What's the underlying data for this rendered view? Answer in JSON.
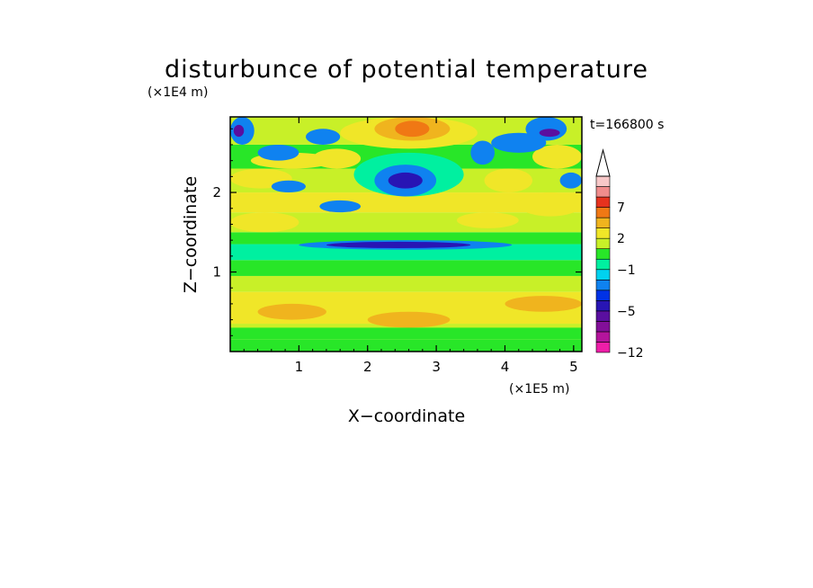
{
  "chart_data": {
    "type": "heatmap",
    "title": "disturbunce of potential temperature",
    "time_label": "t=166800 s",
    "xlabel": "X−coordinate",
    "ylabel": "Z−coordinate",
    "x_unit": "(×1E5 m)",
    "y_unit": "(×1E4 m)",
    "xlim": [
      0,
      5.12
    ],
    "ylim": [
      0,
      2.95
    ],
    "x_ticks": [
      1,
      2,
      3,
      4,
      5
    ],
    "x_tick_labels": [
      "1",
      "2",
      "3",
      "4",
      "5"
    ],
    "y_ticks": [
      1,
      2
    ],
    "y_tick_labels": [
      "1",
      "2"
    ],
    "colorbar": {
      "levels": [
        -12,
        -10,
        -8,
        -6,
        -5,
        -4,
        -3,
        -2,
        -1,
        0,
        1,
        2,
        3,
        5,
        7,
        9,
        11
      ],
      "labels": [
        {
          "value": -12,
          "text": "−12"
        },
        {
          "value": -5,
          "text": "−5"
        },
        {
          "value": -1,
          "text": "−1"
        },
        {
          "value": 2,
          "text": "2"
        },
        {
          "value": 7,
          "text": "7"
        }
      ],
      "colors": [
        "#ee1ea8",
        "#b4149c",
        "#820f99",
        "#5a0fa0",
        "#2815b4",
        "#0032e6",
        "#0f82f0",
        "#00d2f0",
        "#00f0a0",
        "#28e628",
        "#c8f028",
        "#f0e628",
        "#f0b41e",
        "#f07814",
        "#e6321e",
        "#f08c8c",
        "#f7c8c8"
      ],
      "extend": "max"
    },
    "regions": [
      {
        "x": [
          0,
          5.12
        ],
        "z": [
          0,
          0.15
        ],
        "value": 0.5
      },
      {
        "x": [
          0,
          5.12
        ],
        "z": [
          0.15,
          0.35
        ],
        "value": 1.5
      },
      {
        "x": [
          0,
          5.12
        ],
        "z": [
          0.35,
          0.75
        ],
        "value": 2.5
      },
      {
        "x": [
          0,
          5.12
        ],
        "z": [
          0.75,
          0.95
        ],
        "value": 1.5
      },
      {
        "x": [
          0,
          5.12
        ],
        "z": [
          0.95,
          1.15
        ],
        "value": 0.5
      },
      {
        "x": [
          0,
          5.12
        ],
        "z": [
          1.15,
          1.35
        ],
        "value": -0.5
      },
      {
        "x": [
          0,
          5.12
        ],
        "z": [
          1.35,
          1.5
        ],
        "value": 0.5
      },
      {
        "x": [
          0,
          5.12
        ],
        "z": [
          1.5,
          1.75
        ],
        "value": 1.5
      },
      {
        "x": [
          0,
          5.12
        ],
        "z": [
          1.75,
          2.0
        ],
        "value": 2.5
      },
      {
        "x": [
          0,
          5.12
        ],
        "z": [
          2.0,
          2.3
        ],
        "value": 1.5
      },
      {
        "x": [
          0,
          5.12
        ],
        "z": [
          2.3,
          2.6
        ],
        "value": 0.5
      },
      {
        "x": [
          0,
          5.12
        ],
        "z": [
          2.6,
          2.95
        ],
        "value": 1.5
      },
      {
        "x": [
          1.6,
          3.6
        ],
        "z": [
          2.55,
          2.95
        ],
        "value": 2.5
      },
      {
        "x": [
          2.1,
          3.2
        ],
        "z": [
          2.65,
          2.95
        ],
        "value": 4
      },
      {
        "x": [
          2.4,
          2.9
        ],
        "z": [
          2.7,
          2.9
        ],
        "value": 6
      },
      {
        "x": [
          1.8,
          3.4
        ],
        "z": [
          1.95,
          2.5
        ],
        "value": -0.5
      },
      {
        "x": [
          2.1,
          3.0
        ],
        "z": [
          1.95,
          2.35
        ],
        "value": -2.5
      },
      {
        "x": [
          2.3,
          2.8
        ],
        "z": [
          2.05,
          2.25
        ],
        "value": -4.5
      },
      {
        "x": [
          1.0,
          4.1
        ],
        "z": [
          1.28,
          1.4
        ],
        "value": -2.5
      },
      {
        "x": [
          1.4,
          3.5
        ],
        "z": [
          1.3,
          1.38
        ],
        "value": -4.5
      },
      {
        "x": [
          0,
          1.0
        ],
        "z": [
          1.5,
          1.75
        ],
        "value": 2.5
      },
      {
        "x": [
          0,
          0.9
        ],
        "z": [
          2.05,
          2.3
        ],
        "value": 2.5
      },
      {
        "x": [
          0.3,
          1.5
        ],
        "z": [
          2.3,
          2.5
        ],
        "value": 2.5
      },
      {
        "x": [
          0.4,
          1.0
        ],
        "z": [
          2.4,
          2.6
        ],
        "value": -2.5
      },
      {
        "x": [
          0.6,
          1.1
        ],
        "z": [
          2.0,
          2.15
        ],
        "value": -2.5
      },
      {
        "x": [
          0,
          0.35
        ],
        "z": [
          2.6,
          2.95
        ],
        "value": -2.5
      },
      {
        "x": [
          0.05,
          0.2
        ],
        "z": [
          2.7,
          2.85
        ],
        "value": -5.5
      },
      {
        "x": [
          1.1,
          1.6
        ],
        "z": [
          2.6,
          2.8
        ],
        "value": -2.5
      },
      {
        "x": [
          1.3,
          1.9
        ],
        "z": [
          1.75,
          1.9
        ],
        "value": -2.5
      },
      {
        "x": [
          1.2,
          1.9
        ],
        "z": [
          2.3,
          2.55
        ],
        "value": 2.5
      },
      {
        "x": [
          3.7,
          4.4
        ],
        "z": [
          2.0,
          2.3
        ],
        "value": 2.5
      },
      {
        "x": [
          4.2,
          5.12
        ],
        "z": [
          1.7,
          2.0
        ],
        "value": 2.5
      },
      {
        "x": [
          4.4,
          5.12
        ],
        "z": [
          2.3,
          2.6
        ],
        "value": 2.5
      },
      {
        "x": [
          3.8,
          4.6
        ],
        "z": [
          2.5,
          2.75
        ],
        "value": -2.5
      },
      {
        "x": [
          4.3,
          4.9
        ],
        "z": [
          2.65,
          2.95
        ],
        "value": -2.5
      },
      {
        "x": [
          4.5,
          4.8
        ],
        "z": [
          2.7,
          2.8
        ],
        "value": -5.5
      },
      {
        "x": [
          3.5,
          3.85
        ],
        "z": [
          2.35,
          2.65
        ],
        "value": -2.5
      },
      {
        "x": [
          4.8,
          5.12
        ],
        "z": [
          2.05,
          2.25
        ],
        "value": -2.5
      },
      {
        "x": [
          3.3,
          4.2
        ],
        "z": [
          1.55,
          1.75
        ],
        "value": 2.5
      },
      {
        "x": [
          0.4,
          1.4
        ],
        "z": [
          0.4,
          0.6
        ],
        "value": 4
      },
      {
        "x": [
          2.0,
          3.2
        ],
        "z": [
          0.3,
          0.5
        ],
        "value": 4
      },
      {
        "x": [
          4.0,
          5.12
        ],
        "z": [
          0.5,
          0.7
        ],
        "value": 4
      },
      {
        "x": [
          0,
          5.12
        ],
        "z": [
          0.15,
          0.3
        ],
        "value": 0.5
      }
    ]
  }
}
